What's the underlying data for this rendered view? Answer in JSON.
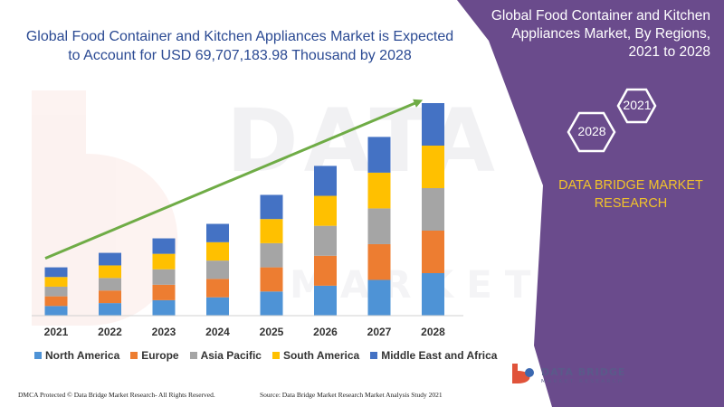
{
  "chart_data": {
    "type": "bar",
    "stacked": true,
    "title": "Global Food Container and Kitchen Appliances Market is Expected to Account for USD 69,707,183.98 Thousand by 2028",
    "categories": [
      "2021",
      "2022",
      "2023",
      "2024",
      "2025",
      "2026",
      "2027",
      "2028"
    ],
    "series": [
      {
        "name": "North America",
        "color": "#4e93d6",
        "values": [
          10,
          13,
          16,
          19,
          25,
          31,
          37,
          44
        ]
      },
      {
        "name": "Europe",
        "color": "#ed7d31",
        "values": [
          10,
          13,
          16,
          19,
          25,
          31,
          37,
          44
        ]
      },
      {
        "name": "Asia Pacific",
        "color": "#a5a5a5",
        "values": [
          10,
          13,
          16,
          19,
          25,
          31,
          37,
          44
        ]
      },
      {
        "name": "South America",
        "color": "#ffc000",
        "values": [
          10,
          13,
          16,
          19,
          25,
          31,
          37,
          44
        ]
      },
      {
        "name": "Middle East and Africa",
        "color": "#4472c4",
        "values": [
          10,
          13,
          16,
          19,
          25,
          31,
          37,
          44
        ]
      }
    ],
    "ylim": [
      0,
      220
    ],
    "legend": "bottom",
    "grid": false,
    "trend_arrow_color": "#6fac46"
  },
  "side_panel": {
    "title": "Global Food Container and Kitchen Appliances Market, By Regions, 2021 to 2028",
    "hex_year_1": "2021",
    "hex_year_2": "2028",
    "brand": "DATA BRIDGE MARKET RESEARCH",
    "background_color": "#6a4b8c",
    "accent_color": "#f2c32a"
  },
  "logo": {
    "main": "DATA BRIDGE",
    "sub": "MARKET RESEARCH"
  },
  "watermark": {
    "main": "DATA BRIDGE",
    "sub": "MARKET RESEARCH"
  },
  "footer": {
    "left": "DMCA Protected © Data Bridge Market Research- All Rights Reserved.",
    "right": "Source: Data Bridge Market Research Market Analysis Study 2021"
  }
}
